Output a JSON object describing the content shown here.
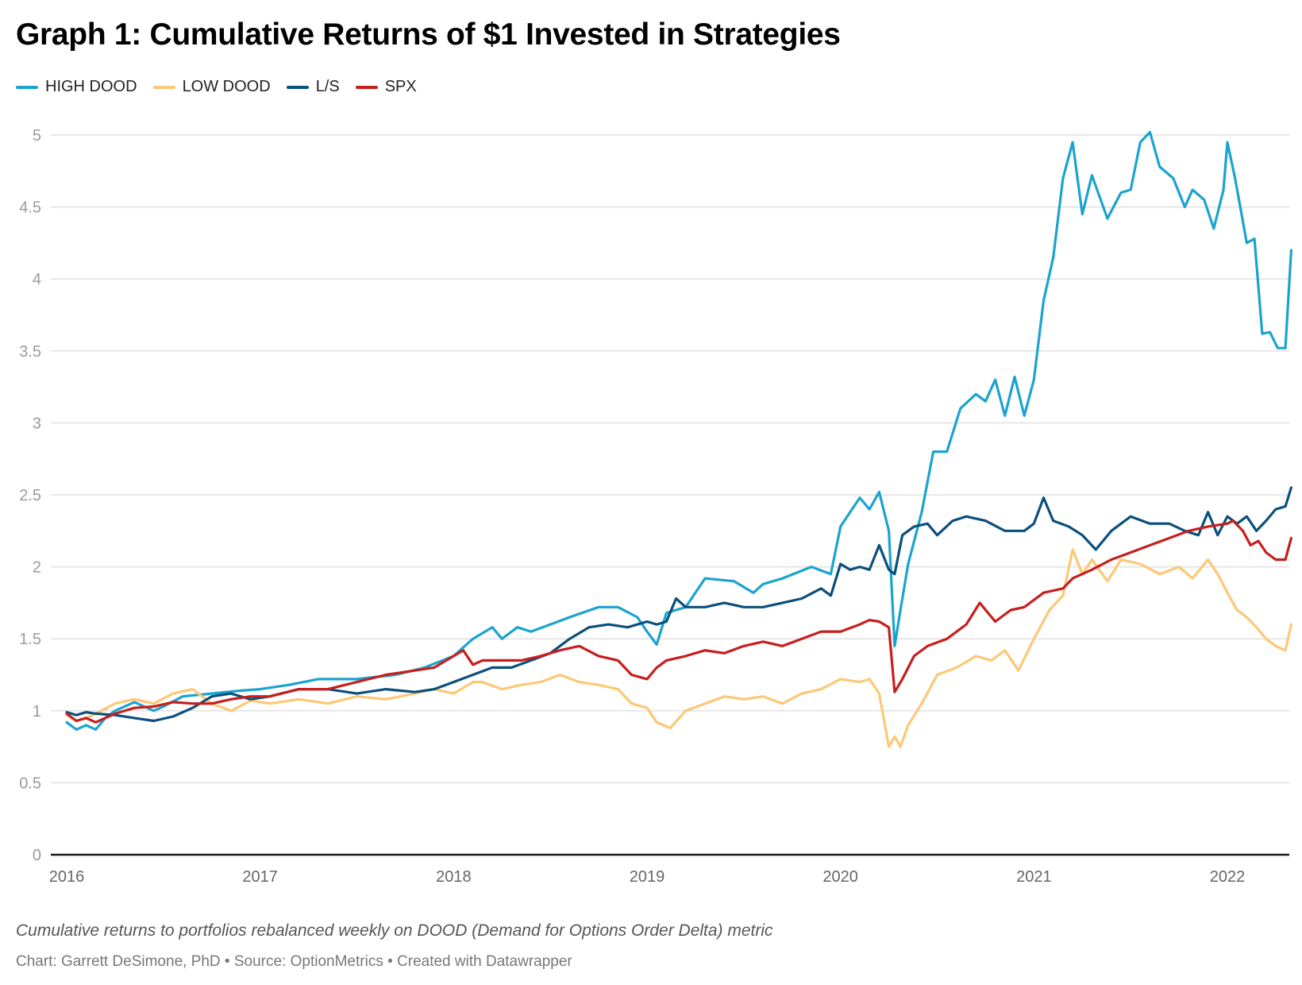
{
  "header": {
    "title": "Graph 1: Cumulative Returns of $1 Invested in Strategies"
  },
  "footer": {
    "notes": "Cumulative returns to portfolios rebalanced weekly on DOOD (Demand for Options Order Delta) metric",
    "byline": "Chart: Garrett DeSimone, PhD • Source: OptionMetrics • Created with Datawrapper"
  },
  "chart_data": {
    "type": "line",
    "title": "Graph 1: Cumulative Returns of $1 Invested in Strategies",
    "xlabel": "",
    "ylabel": "",
    "xlim": [
      2016.0,
      2022.35
    ],
    "ylim": [
      0,
      5
    ],
    "x_ticks": [
      2016,
      2017,
      2018,
      2019,
      2020,
      2021,
      2022
    ],
    "x_tick_labels": [
      "2016",
      "2017",
      "2018",
      "2019",
      "2020",
      "2021",
      "2022"
    ],
    "y_ticks": [
      0,
      0.5,
      1,
      1.5,
      2,
      2.5,
      3,
      3.5,
      4,
      4.5,
      5
    ],
    "y_tick_labels": [
      "0",
      "0.5",
      "1",
      "1.5",
      "2",
      "2.5",
      "3",
      "3.5",
      "4",
      "4.5",
      "5"
    ],
    "grid": true,
    "legend_position": "top-left",
    "series": [
      {
        "name": "HIGH DOOD",
        "color": "#1ba3d0",
        "x": [
          2016.0,
          2016.05,
          2016.1,
          2016.15,
          2016.2,
          2016.25,
          2016.35,
          2016.45,
          2016.5,
          2016.6,
          2016.75,
          2016.9,
          2017.0,
          2017.15,
          2017.3,
          2017.5,
          2017.7,
          2017.85,
          2018.0,
          2018.1,
          2018.2,
          2018.25,
          2018.33,
          2018.4,
          2018.5,
          2018.6,
          2018.75,
          2018.85,
          2018.95,
          2019.0,
          2019.05,
          2019.1,
          2019.2,
          2019.3,
          2019.45,
          2019.55,
          2019.6,
          2019.7,
          2019.85,
          2019.95,
          2020.0,
          2020.05,
          2020.1,
          2020.15,
          2020.2,
          2020.25,
          2020.28,
          2020.31,
          2020.35,
          2020.42,
          2020.48,
          2020.55,
          2020.62,
          2020.7,
          2020.75,
          2020.8,
          2020.85,
          2020.9,
          2020.95,
          2021.0,
          2021.05,
          2021.1,
          2021.15,
          2021.2,
          2021.25,
          2021.3,
          2021.38,
          2021.45,
          2021.5,
          2021.55,
          2021.6,
          2021.65,
          2021.72,
          2021.78,
          2021.82,
          2021.88,
          2021.93,
          2021.98,
          2022.0,
          2022.04,
          2022.1,
          2022.14,
          2022.18,
          2022.22,
          2022.26,
          2022.3,
          2022.33
        ],
        "y": [
          0.92,
          0.87,
          0.9,
          0.87,
          0.95,
          1.0,
          1.06,
          1.0,
          1.03,
          1.1,
          1.12,
          1.14,
          1.15,
          1.18,
          1.22,
          1.22,
          1.25,
          1.3,
          1.38,
          1.5,
          1.58,
          1.5,
          1.58,
          1.55,
          1.6,
          1.65,
          1.72,
          1.72,
          1.65,
          1.55,
          1.46,
          1.68,
          1.72,
          1.92,
          1.9,
          1.82,
          1.88,
          1.92,
          2.0,
          1.95,
          2.28,
          2.38,
          2.48,
          2.4,
          2.52,
          2.25,
          1.45,
          1.7,
          2.02,
          2.38,
          2.8,
          2.8,
          3.1,
          3.2,
          3.15,
          3.3,
          3.05,
          3.32,
          3.05,
          3.3,
          3.85,
          4.15,
          4.7,
          4.95,
          4.45,
          4.72,
          4.42,
          4.6,
          4.62,
          4.95,
          5.02,
          4.78,
          4.7,
          4.5,
          4.62,
          4.55,
          4.35,
          4.62,
          4.95,
          4.7,
          4.25,
          4.28,
          3.62,
          3.63,
          3.52,
          3.52,
          4.2
        ]
      },
      {
        "name": "LOW DOOD",
        "color": "#fdc875",
        "x": [
          2016.0,
          2016.05,
          2016.1,
          2016.15,
          2016.25,
          2016.35,
          2016.45,
          2016.55,
          2016.65,
          2016.75,
          2016.85,
          2016.95,
          2017.05,
          2017.2,
          2017.35,
          2017.5,
          2017.65,
          2017.8,
          2017.9,
          2018.0,
          2018.1,
          2018.15,
          2018.25,
          2018.35,
          2018.45,
          2018.55,
          2018.65,
          2018.75,
          2018.85,
          2018.92,
          2019.0,
          2019.05,
          2019.12,
          2019.2,
          2019.3,
          2019.4,
          2019.5,
          2019.6,
          2019.7,
          2019.8,
          2019.9,
          2020.0,
          2020.1,
          2020.15,
          2020.2,
          2020.25,
          2020.28,
          2020.31,
          2020.35,
          2020.42,
          2020.5,
          2020.6,
          2020.7,
          2020.78,
          2020.85,
          2020.92,
          2021.0,
          2021.08,
          2021.15,
          2021.2,
          2021.25,
          2021.3,
          2021.38,
          2021.45,
          2021.55,
          2021.65,
          2021.75,
          2021.82,
          2021.9,
          2021.95,
          2022.0,
          2022.05,
          2022.1,
          2022.15,
          2022.2,
          2022.25,
          2022.3,
          2022.33
        ],
        "y": [
          0.97,
          0.93,
          0.95,
          0.98,
          1.05,
          1.08,
          1.05,
          1.12,
          1.15,
          1.05,
          1.0,
          1.07,
          1.05,
          1.08,
          1.05,
          1.1,
          1.08,
          1.12,
          1.15,
          1.12,
          1.2,
          1.2,
          1.15,
          1.18,
          1.2,
          1.25,
          1.2,
          1.18,
          1.15,
          1.05,
          1.02,
          0.92,
          0.88,
          1.0,
          1.05,
          1.1,
          1.08,
          1.1,
          1.05,
          1.12,
          1.15,
          1.22,
          1.2,
          1.22,
          1.12,
          0.75,
          0.82,
          0.75,
          0.9,
          1.05,
          1.25,
          1.3,
          1.38,
          1.35,
          1.42,
          1.28,
          1.5,
          1.7,
          1.8,
          2.12,
          1.95,
          2.05,
          1.9,
          2.05,
          2.02,
          1.95,
          2.0,
          1.92,
          2.05,
          1.95,
          1.82,
          1.7,
          1.65,
          1.58,
          1.5,
          1.45,
          1.42,
          1.6
        ]
      },
      {
        "name": "L/S",
        "color": "#0b4f7c",
        "x": [
          2016.0,
          2016.05,
          2016.1,
          2016.15,
          2016.25,
          2016.35,
          2016.45,
          2016.55,
          2016.65,
          2016.75,
          2016.85,
          2016.95,
          2017.05,
          2017.2,
          2017.35,
          2017.5,
          2017.65,
          2017.8,
          2017.9,
          2018.0,
          2018.1,
          2018.2,
          2018.3,
          2018.4,
          2018.5,
          2018.6,
          2018.7,
          2018.8,
          2018.9,
          2019.0,
          2019.05,
          2019.1,
          2019.15,
          2019.2,
          2019.3,
          2019.4,
          2019.5,
          2019.6,
          2019.7,
          2019.8,
          2019.9,
          2019.95,
          2020.0,
          2020.05,
          2020.1,
          2020.15,
          2020.2,
          2020.25,
          2020.28,
          2020.32,
          2020.38,
          2020.45,
          2020.5,
          2020.58,
          2020.65,
          2020.75,
          2020.85,
          2020.95,
          2021.0,
          2021.05,
          2021.1,
          2021.18,
          2021.25,
          2021.32,
          2021.4,
          2021.5,
          2021.6,
          2021.7,
          2021.78,
          2021.85,
          2021.9,
          2021.95,
          2022.0,
          2022.05,
          2022.1,
          2022.15,
          2022.2,
          2022.25,
          2022.3,
          2022.33
        ],
        "y": [
          0.99,
          0.97,
          0.99,
          0.98,
          0.97,
          0.95,
          0.93,
          0.96,
          1.02,
          1.1,
          1.12,
          1.08,
          1.1,
          1.15,
          1.15,
          1.12,
          1.15,
          1.13,
          1.15,
          1.2,
          1.25,
          1.3,
          1.3,
          1.35,
          1.4,
          1.5,
          1.58,
          1.6,
          1.58,
          1.62,
          1.6,
          1.62,
          1.78,
          1.72,
          1.72,
          1.75,
          1.72,
          1.72,
          1.75,
          1.78,
          1.85,
          1.8,
          2.02,
          1.98,
          2.0,
          1.98,
          2.15,
          1.98,
          1.95,
          2.22,
          2.28,
          2.3,
          2.22,
          2.32,
          2.35,
          2.32,
          2.25,
          2.25,
          2.3,
          2.48,
          2.32,
          2.28,
          2.22,
          2.12,
          2.25,
          2.35,
          2.3,
          2.3,
          2.25,
          2.22,
          2.38,
          2.22,
          2.35,
          2.3,
          2.35,
          2.25,
          2.32,
          2.4,
          2.42,
          2.55
        ]
      },
      {
        "name": "SPX",
        "color": "#c71e1d",
        "x": [
          2016.0,
          2016.05,
          2016.1,
          2016.15,
          2016.25,
          2016.35,
          2016.45,
          2016.55,
          2016.65,
          2016.75,
          2016.85,
          2016.95,
          2017.05,
          2017.2,
          2017.35,
          2017.5,
          2017.65,
          2017.8,
          2017.9,
          2018.0,
          2018.05,
          2018.1,
          2018.15,
          2018.25,
          2018.35,
          2018.45,
          2018.55,
          2018.65,
          2018.75,
          2018.85,
          2018.92,
          2019.0,
          2019.05,
          2019.1,
          2019.2,
          2019.3,
          2019.4,
          2019.5,
          2019.6,
          2019.7,
          2019.8,
          2019.9,
          2020.0,
          2020.1,
          2020.15,
          2020.2,
          2020.25,
          2020.28,
          2020.32,
          2020.38,
          2020.45,
          2020.55,
          2020.65,
          2020.72,
          2020.8,
          2020.88,
          2020.95,
          2021.05,
          2021.15,
          2021.2,
          2021.3,
          2021.4,
          2021.5,
          2021.6,
          2021.7,
          2021.8,
          2021.9,
          2022.0,
          2022.03,
          2022.08,
          2022.12,
          2022.16,
          2022.2,
          2022.25,
          2022.3,
          2022.33
        ],
        "y": [
          0.98,
          0.93,
          0.95,
          0.92,
          0.98,
          1.02,
          1.03,
          1.06,
          1.05,
          1.05,
          1.08,
          1.1,
          1.1,
          1.15,
          1.15,
          1.2,
          1.25,
          1.28,
          1.3,
          1.38,
          1.42,
          1.32,
          1.35,
          1.35,
          1.35,
          1.38,
          1.42,
          1.45,
          1.38,
          1.35,
          1.25,
          1.22,
          1.3,
          1.35,
          1.38,
          1.42,
          1.4,
          1.45,
          1.48,
          1.45,
          1.5,
          1.55,
          1.55,
          1.6,
          1.63,
          1.62,
          1.58,
          1.13,
          1.22,
          1.38,
          1.45,
          1.5,
          1.6,
          1.75,
          1.62,
          1.7,
          1.72,
          1.82,
          1.85,
          1.92,
          1.98,
          2.05,
          2.1,
          2.15,
          2.2,
          2.25,
          2.28,
          2.3,
          2.32,
          2.25,
          2.15,
          2.18,
          2.1,
          2.05,
          2.05,
          2.2
        ]
      }
    ]
  }
}
